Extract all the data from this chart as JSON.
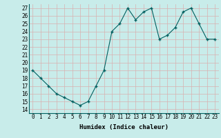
{
  "x": [
    0,
    1,
    2,
    3,
    4,
    5,
    6,
    7,
    8,
    9,
    10,
    11,
    12,
    13,
    14,
    15,
    16,
    17,
    18,
    19,
    20,
    21,
    22,
    23
  ],
  "y": [
    19,
    18,
    17,
    16,
    15.5,
    15,
    14.5,
    15,
    17,
    19,
    24,
    25,
    27,
    25.5,
    26.5,
    27,
    23,
    23.5,
    24.5,
    26.5,
    27,
    25,
    23,
    23
  ],
  "line_color": "#006060",
  "marker": "+",
  "marker_size": 3,
  "xlabel": "Humidex (Indice chaleur)",
  "xlim": [
    -0.5,
    23.5
  ],
  "ylim": [
    13.5,
    27.5
  ],
  "yticks": [
    14,
    15,
    16,
    17,
    18,
    19,
    20,
    21,
    22,
    23,
    24,
    25,
    26,
    27
  ],
  "xticks": [
    0,
    1,
    2,
    3,
    4,
    5,
    6,
    7,
    8,
    9,
    10,
    11,
    12,
    13,
    14,
    15,
    16,
    17,
    18,
    19,
    20,
    21,
    22,
    23
  ],
  "bg_color": "#c8ecea",
  "grid_color": "#e8f8f8",
  "tick_fontsize": 5.5,
  "xlabel_fontsize": 6.5
}
